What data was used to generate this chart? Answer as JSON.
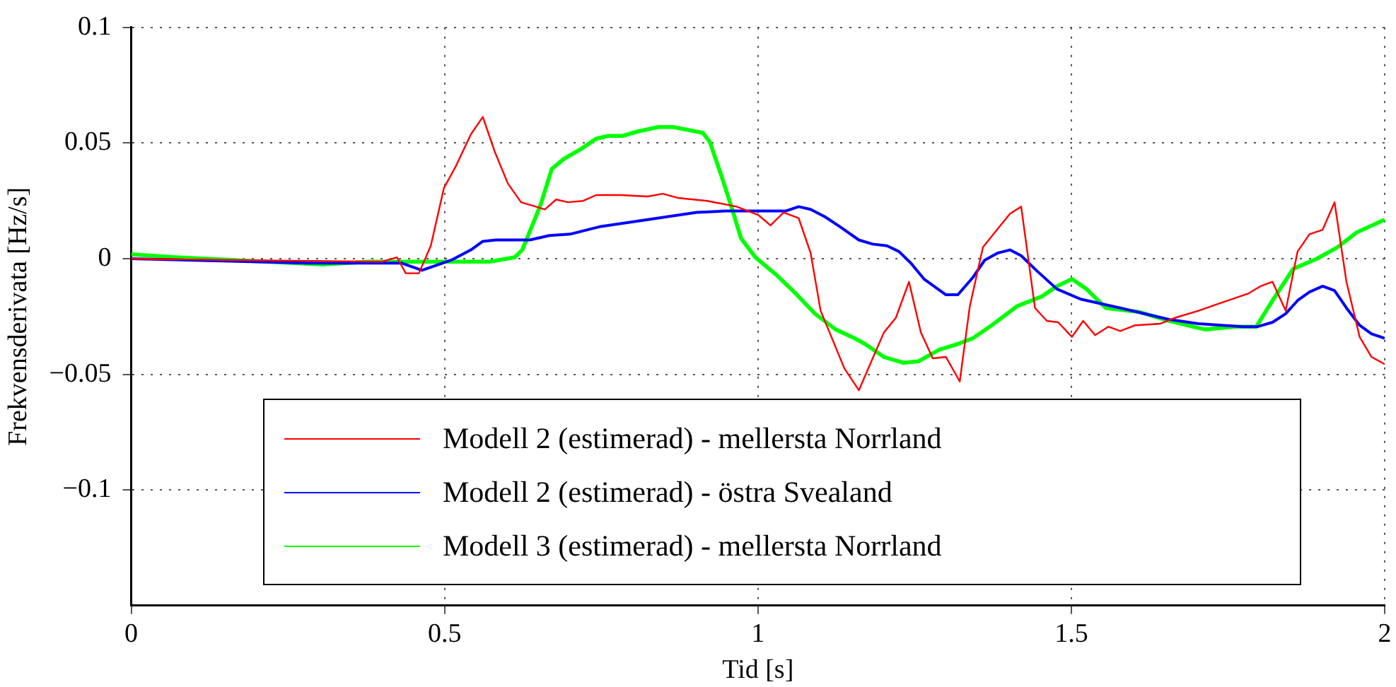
{
  "chart_data": {
    "type": "line",
    "xlabel": "Tid [s]",
    "ylabel": "Frekvensderivata [Hz/s]",
    "xlim": [
      0,
      2
    ],
    "ylim": [
      -0.15,
      0.1
    ],
    "xticks": [
      0,
      0.5,
      1,
      1.5,
      2
    ],
    "yticks": [
      {
        "value": -0.1,
        "label": "−0.1"
      },
      {
        "value": -0.05,
        "label": "−0.05"
      },
      0,
      0.05,
      0.1
    ],
    "grid": true,
    "legend": "bottom",
    "line_style": "solid",
    "marker": "none",
    "series": [
      {
        "name": "Modell 2 (estimerad) - mellersta Norrland",
        "color": "#ff0000",
        "x": [
          0,
          0.165,
          0.4,
          0.424,
          0.438,
          0.459,
          0.478,
          0.499,
          0.518,
          0.542,
          0.561,
          0.58,
          0.601,
          0.622,
          0.66,
          0.678,
          0.697,
          0.721,
          0.742,
          0.782,
          0.824,
          0.848,
          0.872,
          0.919,
          0.966,
          1.001,
          1.02,
          1.041,
          1.065,
          1.084,
          1.1,
          1.138,
          1.161,
          1.183,
          1.201,
          1.22,
          1.241,
          1.26,
          1.279,
          1.3,
          1.322,
          1.338,
          1.359,
          1.383,
          1.402,
          1.42,
          1.442,
          1.461,
          1.479,
          1.501,
          1.519,
          1.538,
          1.559,
          1.578,
          1.602,
          1.642,
          1.665,
          1.703,
          1.736,
          1.783,
          1.802,
          1.821,
          1.842,
          1.861,
          1.88,
          1.901,
          1.92,
          1.939,
          1.96,
          1.979,
          2
        ],
        "values": [
          0,
          -0.0006,
          -0.0013,
          0.0006,
          -0.0063,
          -0.0063,
          0.0056,
          0.0306,
          0.04,
          0.0538,
          0.0613,
          0.0463,
          0.0325,
          0.0244,
          0.0213,
          0.0256,
          0.0244,
          0.025,
          0.0275,
          0.0275,
          0.0269,
          0.0281,
          0.0263,
          0.025,
          0.0225,
          0.0188,
          0.0144,
          0.02,
          0.0175,
          0.0025,
          -0.0225,
          -0.0475,
          -0.0569,
          -0.0431,
          -0.0319,
          -0.0256,
          -0.01,
          -0.0319,
          -0.0431,
          -0.0425,
          -0.0531,
          -0.0206,
          0.005,
          0.0131,
          0.0194,
          0.0225,
          -0.0213,
          -0.0269,
          -0.0275,
          -0.0338,
          -0.0269,
          -0.0331,
          -0.0294,
          -0.0313,
          -0.0288,
          -0.0281,
          -0.0256,
          -0.0225,
          -0.0194,
          -0.015,
          -0.0119,
          -0.01,
          -0.0225,
          0.0031,
          0.0106,
          0.0125,
          0.0244,
          -0.01,
          -0.0338,
          -0.0425,
          -0.0456
        ]
      },
      {
        "name": "Modell 2 (estimerad) - östra Svealand",
        "color": "#0000ff",
        "x": [
          0,
          0.283,
          0.431,
          0.464,
          0.511,
          0.542,
          0.561,
          0.582,
          0.636,
          0.667,
          0.7,
          0.747,
          0.824,
          0.902,
          0.949,
          0.996,
          1.044,
          1.065,
          1.084,
          1.107,
          1.131,
          1.161,
          1.183,
          1.206,
          1.225,
          1.244,
          1.265,
          1.3,
          1.319,
          1.343,
          1.362,
          1.383,
          1.402,
          1.42,
          1.444,
          1.477,
          1.515,
          1.578,
          1.656,
          1.703,
          1.774,
          1.797,
          1.821,
          1.842,
          1.861,
          1.88,
          1.901,
          1.92,
          1.939,
          1.96,
          1.979,
          2
        ],
        "values": [
          0,
          -0.0019,
          -0.0019,
          -0.005,
          -0.0006,
          0.0038,
          0.0075,
          0.0081,
          0.0081,
          0.01,
          0.0106,
          0.0138,
          0.0169,
          0.02,
          0.0206,
          0.0206,
          0.0206,
          0.0225,
          0.0213,
          0.0181,
          0.0138,
          0.0081,
          0.0063,
          0.0056,
          0.0031,
          -0.0019,
          -0.0088,
          -0.0156,
          -0.0156,
          -0.0081,
          -0.0006,
          0.0025,
          0.0038,
          0.0013,
          -0.005,
          -0.0131,
          -0.0175,
          -0.0213,
          -0.0263,
          -0.0281,
          -0.0294,
          -0.0294,
          -0.0275,
          -0.0238,
          -0.0181,
          -0.0144,
          -0.0119,
          -0.0138,
          -0.0213,
          -0.0288,
          -0.0325,
          -0.0344
        ]
      },
      {
        "name": "Modell 3 (estimerad) - mellersta Norrland",
        "color": "#00ff00",
        "x": [
          0,
          0.071,
          0.165,
          0.306,
          0.377,
          0.572,
          0.612,
          0.624,
          0.653,
          0.671,
          0.69,
          0.718,
          0.742,
          0.761,
          0.784,
          0.808,
          0.841,
          0.865,
          0.912,
          0.923,
          0.942,
          0.959,
          0.973,
          0.996,
          1.029,
          1.06,
          1.091,
          1.124,
          1.154,
          1.171,
          1.201,
          1.232,
          1.256,
          1.289,
          1.319,
          1.343,
          1.373,
          1.413,
          1.453,
          1.477,
          1.501,
          1.524,
          1.555,
          1.609,
          1.656,
          1.713,
          1.76,
          1.795,
          1.821,
          1.854,
          1.892,
          1.925,
          1.955,
          2
        ],
        "values": [
          0.0019,
          0.0006,
          -0.0006,
          -0.0025,
          -0.0013,
          -0.0013,
          0.0006,
          0.0038,
          0.0231,
          0.0388,
          0.0431,
          0.0475,
          0.0519,
          0.0531,
          0.0531,
          0.055,
          0.0569,
          0.0569,
          0.0544,
          0.0506,
          0.0356,
          0.0213,
          0.0088,
          0.0006,
          -0.0069,
          -0.015,
          -0.0238,
          -0.0306,
          -0.0344,
          -0.0369,
          -0.0425,
          -0.045,
          -0.0444,
          -0.0394,
          -0.0369,
          -0.0344,
          -0.0288,
          -0.0206,
          -0.0163,
          -0.0119,
          -0.0088,
          -0.0131,
          -0.0213,
          -0.0231,
          -0.0269,
          -0.0306,
          -0.0294,
          -0.0294,
          -0.0181,
          -0.0044,
          0,
          0.005,
          0.0113,
          0.0169
        ]
      }
    ]
  }
}
